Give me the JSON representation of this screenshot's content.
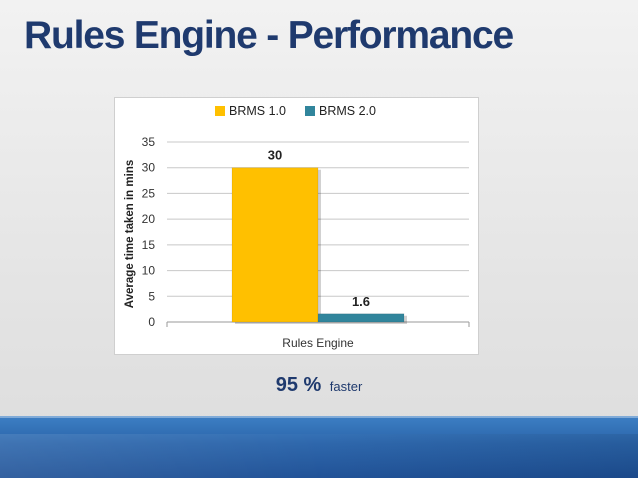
{
  "slide": {
    "title": "Rules Engine - Performance",
    "caption_value": "95 %",
    "caption_text": "faster"
  },
  "colors": {
    "title": "#1f3a6e",
    "series_1": "#ffc000",
    "series_2": "#31859c",
    "grid": "#c8c8c8",
    "footer": "#2a64aa"
  },
  "chart_data": {
    "type": "bar",
    "categories": [
      "Rules Engine"
    ],
    "series": [
      {
        "name": "BRMS 1.0",
        "values": [
          30
        ],
        "color": "#ffc000"
      },
      {
        "name": "BRMS 2.0",
        "values": [
          1.6
        ],
        "color": "#31859c"
      }
    ],
    "data_labels": [
      "30",
      "1.6"
    ],
    "yticks": [
      "0",
      "5",
      "10",
      "15",
      "20",
      "25",
      "30",
      "35"
    ],
    "ylim": [
      0,
      35
    ],
    "ylabel": "Average time taken in mins",
    "xlabel": "",
    "grid": true,
    "legend": "top"
  }
}
